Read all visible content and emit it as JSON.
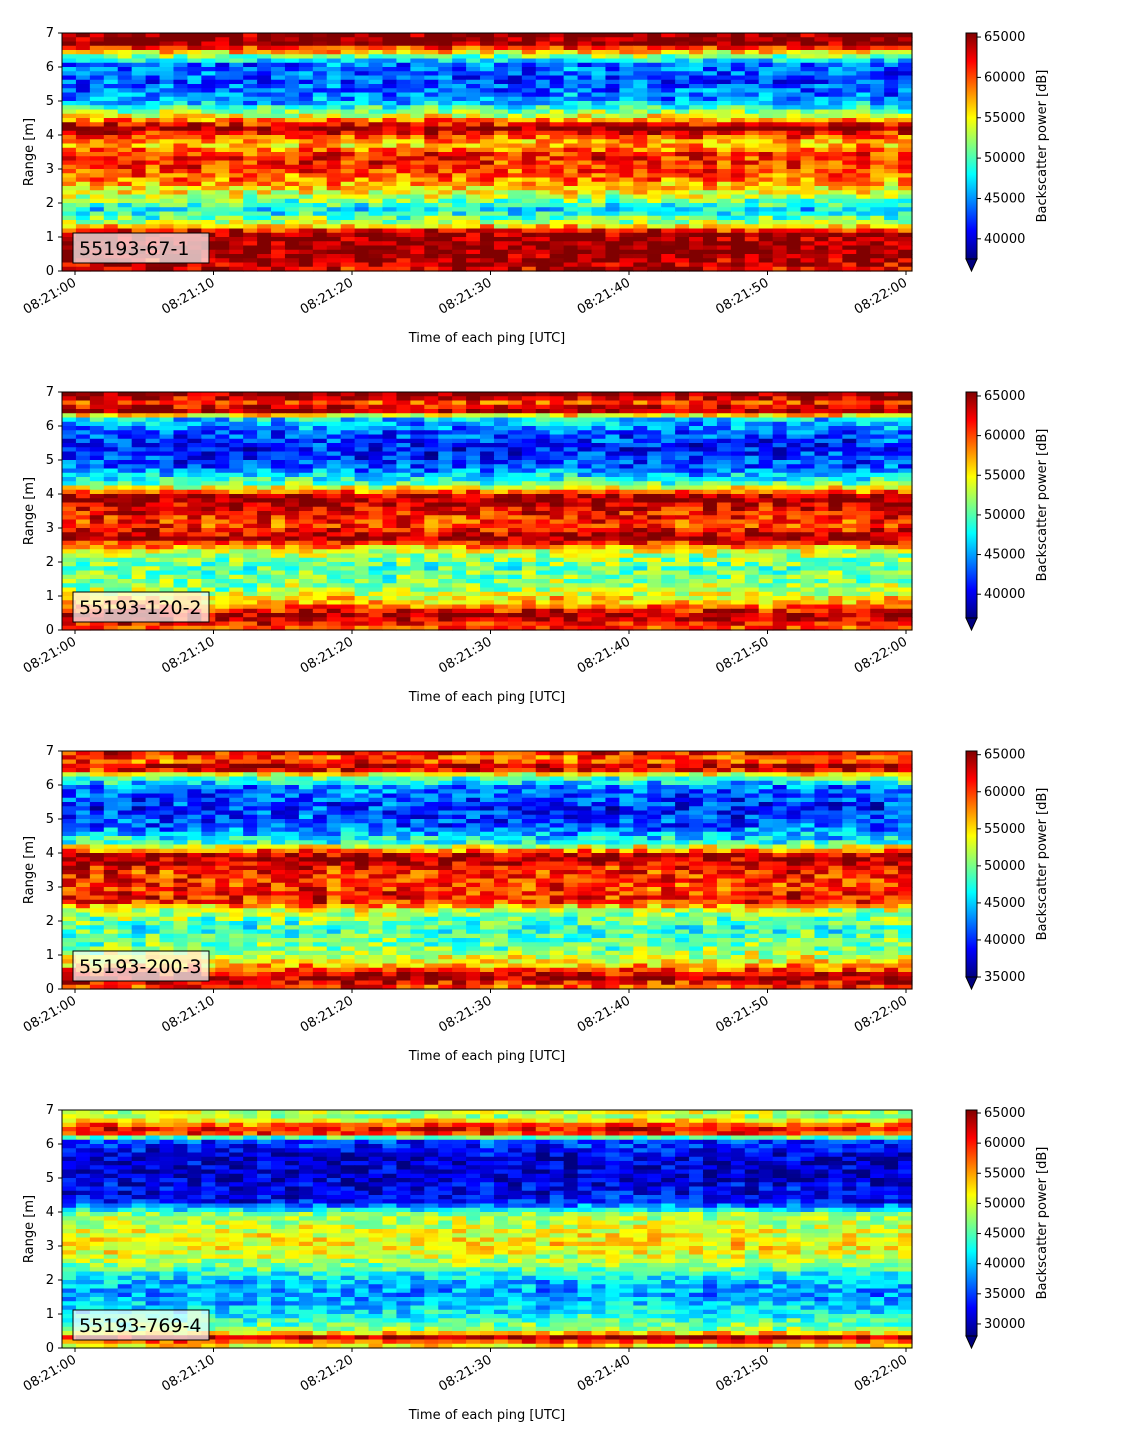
{
  "figure": {
    "x_tick_labels": [
      "08:21:00",
      "08:21:10",
      "08:21:20",
      "08:21:30",
      "08:21:40",
      "08:21:50",
      "08:22:00"
    ],
    "y_tick_labels": [
      "0",
      "1",
      "2",
      "3",
      "4",
      "5",
      "6",
      "7"
    ],
    "xlabel": "Time of each ping [UTC]",
    "ylabel": "Range [m]",
    "colorbar_label": "Backscatter power [dB]",
    "colormap": "jet",
    "colormap_stops": [
      "#000080",
      "#0000ff",
      "#0080ff",
      "#00ffff",
      "#80ff80",
      "#ffff00",
      "#ff8000",
      "#ff0000",
      "#800000"
    ]
  },
  "chart_data": [
    {
      "type": "heatmap",
      "annotation": "55193-67-1",
      "xlabel": "Time of each ping [UTC]",
      "ylabel": "Range [m]",
      "xlim": [
        "08:21:00",
        "08:22:00"
      ],
      "ylim": [
        0,
        7
      ],
      "colorbar": {
        "label": "Backscatter power [dB]",
        "ticks": [
          40000,
          45000,
          50000,
          55000,
          60000,
          65000
        ],
        "vmin": 37500,
        "vmax": 65500,
        "extend": "min"
      },
      "range_profile": [
        {
          "range": 0.1,
          "value": 63000
        },
        {
          "range": 0.5,
          "value": 65500
        },
        {
          "range": 1.1,
          "value": 65000
        },
        {
          "range": 1.4,
          "value": 53000
        },
        {
          "range": 1.8,
          "value": 47000
        },
        {
          "range": 2.2,
          "value": 53000
        },
        {
          "range": 2.6,
          "value": 58000
        },
        {
          "range": 3.0,
          "value": 60500
        },
        {
          "range": 3.4,
          "value": 61500
        },
        {
          "range": 3.75,
          "value": 56000
        },
        {
          "range": 4.2,
          "value": 65500
        },
        {
          "range": 4.5,
          "value": 56000
        },
        {
          "range": 5.0,
          "value": 45000
        },
        {
          "range": 5.6,
          "value": 43000
        },
        {
          "range": 6.1,
          "value": 44000
        },
        {
          "range": 6.35,
          "value": 53000
        },
        {
          "range": 6.7,
          "value": 65500
        },
        {
          "range": 7.0,
          "value": 65500
        }
      ],
      "variability": 4500
    },
    {
      "type": "heatmap",
      "annotation": "55193-120-2",
      "xlabel": "Time of each ping [UTC]",
      "ylabel": "Range [m]",
      "xlim": [
        "08:21:00",
        "08:22:00"
      ],
      "ylim": [
        0,
        7
      ],
      "colorbar": {
        "label": "Backscatter power [dB]",
        "ticks": [
          40000,
          45000,
          50000,
          55000,
          60000,
          65000
        ],
        "vmin": 37000,
        "vmax": 65500,
        "extend": "min"
      },
      "range_profile": [
        {
          "range": 0.1,
          "value": 60000
        },
        {
          "range": 0.4,
          "value": 65500
        },
        {
          "range": 0.75,
          "value": 58000
        },
        {
          "range": 1.2,
          "value": 52000
        },
        {
          "range": 1.8,
          "value": 50000
        },
        {
          "range": 2.3,
          "value": 53000
        },
        {
          "range": 2.7,
          "value": 65000
        },
        {
          "range": 3.1,
          "value": 60000
        },
        {
          "range": 3.5,
          "value": 62000
        },
        {
          "range": 3.9,
          "value": 65500
        },
        {
          "range": 4.3,
          "value": 50000
        },
        {
          "range": 4.8,
          "value": 43000
        },
        {
          "range": 5.3,
          "value": 41000
        },
        {
          "range": 5.8,
          "value": 43000
        },
        {
          "range": 6.2,
          "value": 47000
        },
        {
          "range": 6.45,
          "value": 65500
        },
        {
          "range": 6.7,
          "value": 60000
        },
        {
          "range": 6.9,
          "value": 65500
        }
      ],
      "variability": 4500
    },
    {
      "type": "heatmap",
      "annotation": "55193-200-3",
      "xlabel": "Time of each ping [UTC]",
      "ylabel": "Range [m]",
      "xlim": [
        "08:21:00",
        "08:22:00"
      ],
      "ylim": [
        0,
        7
      ],
      "colorbar": {
        "label": "Backscatter power [dB]",
        "ticks": [
          35000,
          40000,
          45000,
          50000,
          55000,
          60000,
          65000
        ],
        "vmin": 35000,
        "vmax": 65500,
        "extend": "min"
      },
      "range_profile": [
        {
          "range": 0.1,
          "value": 60000
        },
        {
          "range": 0.35,
          "value": 65500
        },
        {
          "range": 0.7,
          "value": 56000
        },
        {
          "range": 1.2,
          "value": 50000
        },
        {
          "range": 1.8,
          "value": 48000
        },
        {
          "range": 2.3,
          "value": 52000
        },
        {
          "range": 2.6,
          "value": 62000
        },
        {
          "range": 3.0,
          "value": 60000
        },
        {
          "range": 3.5,
          "value": 61000
        },
        {
          "range": 3.9,
          "value": 65500
        },
        {
          "range": 4.3,
          "value": 48000
        },
        {
          "range": 4.8,
          "value": 41000
        },
        {
          "range": 5.3,
          "value": 40000
        },
        {
          "range": 5.9,
          "value": 42000
        },
        {
          "range": 6.25,
          "value": 50000
        },
        {
          "range": 6.5,
          "value": 65500
        },
        {
          "range": 6.75,
          "value": 58000
        },
        {
          "range": 6.95,
          "value": 62000
        }
      ],
      "variability": 5000
    },
    {
      "type": "heatmap",
      "annotation": "55193-769-4",
      "xlabel": "Time of each ping [UTC]",
      "ylabel": "Range [m]",
      "xlim": [
        "08:21:00",
        "08:22:00"
      ],
      "ylim": [
        0,
        7
      ],
      "colorbar": {
        "label": "Backscatter power [dB]",
        "ticks": [
          30000,
          35000,
          40000,
          45000,
          50000,
          55000,
          60000,
          65000
        ],
        "vmin": 28000,
        "vmax": 65500,
        "extend": "min"
      },
      "range_profile": [
        {
          "range": 0.1,
          "value": 52000
        },
        {
          "range": 0.3,
          "value": 65500
        },
        {
          "range": 0.5,
          "value": 48000
        },
        {
          "range": 1.0,
          "value": 42000
        },
        {
          "range": 1.6,
          "value": 38000
        },
        {
          "range": 2.0,
          "value": 40000
        },
        {
          "range": 2.5,
          "value": 48000
        },
        {
          "range": 3.0,
          "value": 52000
        },
        {
          "range": 3.5,
          "value": 50000
        },
        {
          "range": 3.9,
          "value": 48000
        },
        {
          "range": 4.3,
          "value": 33000
        },
        {
          "range": 5.0,
          "value": 31000
        },
        {
          "range": 5.6,
          "value": 31000
        },
        {
          "range": 6.1,
          "value": 35000
        },
        {
          "range": 6.35,
          "value": 63000
        },
        {
          "range": 6.55,
          "value": 58000
        },
        {
          "range": 6.8,
          "value": 48000
        },
        {
          "range": 7.0,
          "value": 50000
        }
      ],
      "variability": 5000
    }
  ]
}
